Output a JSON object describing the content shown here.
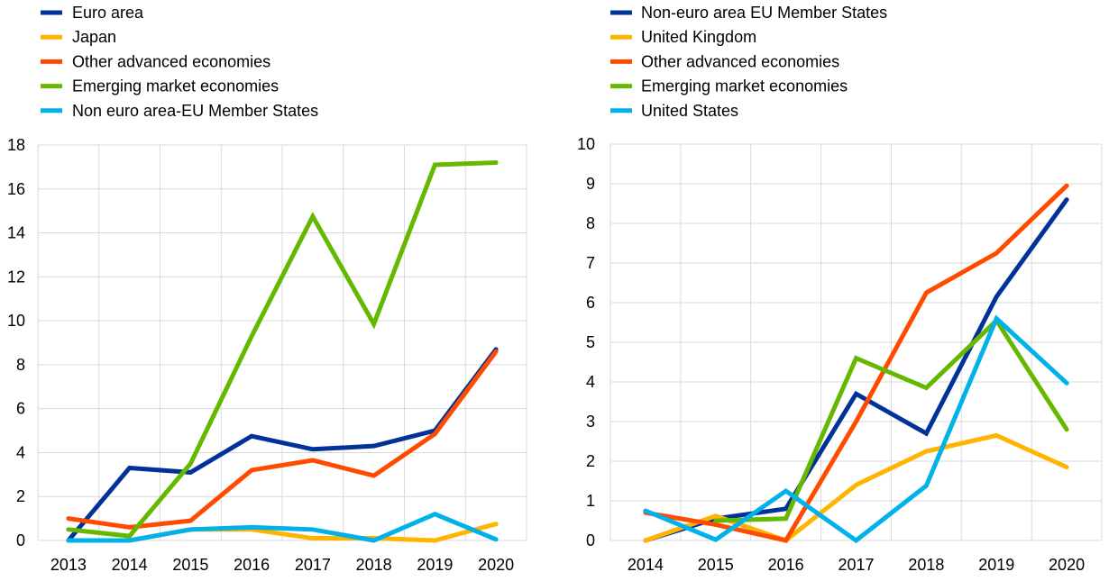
{
  "chart_data": [
    {
      "type": "line",
      "title": "",
      "xlabel": "",
      "ylabel": "",
      "ylim": [
        0,
        18
      ],
      "yticks": [
        0,
        2,
        4,
        6,
        8,
        10,
        12,
        14,
        16,
        18
      ],
      "grid": true,
      "legend": "top-left",
      "categories": [
        "2013",
        "2014",
        "2015",
        "2016",
        "2017",
        "2018",
        "2019",
        "2020"
      ],
      "series": [
        {
          "name": "Euro area",
          "color": "#003299",
          "values": [
            0,
            3.3,
            3.1,
            4.75,
            4.15,
            4.3,
            5.0,
            8.7
          ]
        },
        {
          "name": "Japan",
          "color": "#FFB400",
          "values": [
            0,
            0,
            0.5,
            0.5,
            0.1,
            0.1,
            0,
            0.75
          ]
        },
        {
          "name": "Other advanced economies",
          "color": "#FF4B00",
          "values": [
            1.0,
            0.6,
            0.9,
            3.2,
            3.65,
            2.95,
            4.85,
            8.6
          ]
        },
        {
          "name": "Emerging market economies",
          "color": "#65B800",
          "values": [
            0.5,
            0.2,
            3.5,
            9.3,
            14.75,
            9.85,
            17.1,
            17.2
          ]
        },
        {
          "name": "Non euro area-EU Member States",
          "color": "#00B1EA",
          "values": [
            0,
            0,
            0.5,
            0.6,
            0.5,
            0,
            1.2,
            0.05
          ]
        }
      ]
    },
    {
      "type": "line",
      "title": "",
      "xlabel": "",
      "ylabel": "",
      "ylim": [
        0,
        10
      ],
      "yticks": [
        0,
        1,
        2,
        3,
        4,
        5,
        6,
        7,
        8,
        9,
        10
      ],
      "grid": true,
      "legend": "top-left",
      "categories": [
        "2014",
        "2015",
        "2016",
        "2017",
        "2018",
        "2019",
        "2020"
      ],
      "series": [
        {
          "name": "Non-euro area EU Member States",
          "color": "#003299",
          "values": [
            0,
            0.55,
            0.8,
            3.7,
            2.7,
            6.15,
            8.6
          ]
        },
        {
          "name": "United Kingdom",
          "color": "#FFB400",
          "values": [
            0,
            0.62,
            0,
            1.4,
            2.25,
            2.65,
            1.85
          ]
        },
        {
          "name": "Other advanced economies",
          "color": "#FF4B00",
          "values": [
            0.7,
            0.4,
            0,
            3.0,
            6.25,
            7.25,
            8.95
          ]
        },
        {
          "name": "Emerging market economies",
          "color": "#65B800",
          "values": [
            null,
            0.5,
            0.55,
            4.6,
            3.85,
            5.55,
            2.8
          ]
        },
        {
          "name": "United States",
          "color": "#00B1EA",
          "values": [
            0.75,
            0.02,
            1.25,
            0,
            1.38,
            5.6,
            3.97
          ]
        }
      ]
    }
  ]
}
